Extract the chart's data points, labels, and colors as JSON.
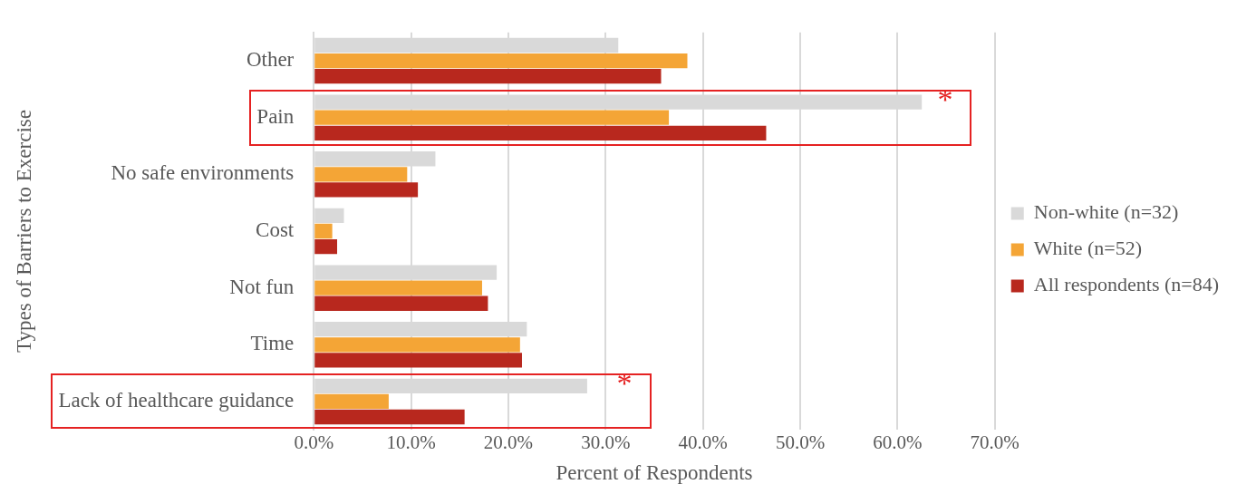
{
  "chart_data": {
    "type": "bar",
    "orientation": "horizontal",
    "xlabel": "Percent of Respondents",
    "ylabel": "Types of Barriers to Exercise",
    "categories": [
      "Other",
      "Pain",
      "No safe environments",
      "Cost",
      "Not fun",
      "Time",
      "Lack of healthcare guidance"
    ],
    "series": [
      {
        "name": "Non-white (n=32)",
        "color": "#d9d9d9",
        "values": [
          31.3,
          62.5,
          12.5,
          3.1,
          18.8,
          21.9,
          28.1
        ]
      },
      {
        "name": "White (n=52)",
        "color": "#f4a536",
        "values": [
          38.4,
          36.5,
          9.6,
          1.9,
          17.3,
          21.2,
          7.7
        ]
      },
      {
        "name": "All respondents (n=84)",
        "color": "#b8281e",
        "values": [
          35.7,
          46.5,
          10.7,
          2.4,
          17.9,
          21.4,
          15.5
        ]
      }
    ],
    "xlim": [
      0,
      70
    ],
    "xticks": [
      {
        "value": 0,
        "label": "0.0%"
      },
      {
        "value": 10,
        "label": "10.0%"
      },
      {
        "value": 20,
        "label": "20.0%"
      },
      {
        "value": 30,
        "label": "30.0%"
      },
      {
        "value": 40,
        "label": "40.0%"
      },
      {
        "value": 50,
        "label": "50.0%"
      },
      {
        "value": 60,
        "label": "60.0%"
      },
      {
        "value": 70,
        "label": "70.0%"
      }
    ],
    "grid": "x",
    "legend": "right",
    "annotations": [
      "*",
      "*"
    ]
  }
}
